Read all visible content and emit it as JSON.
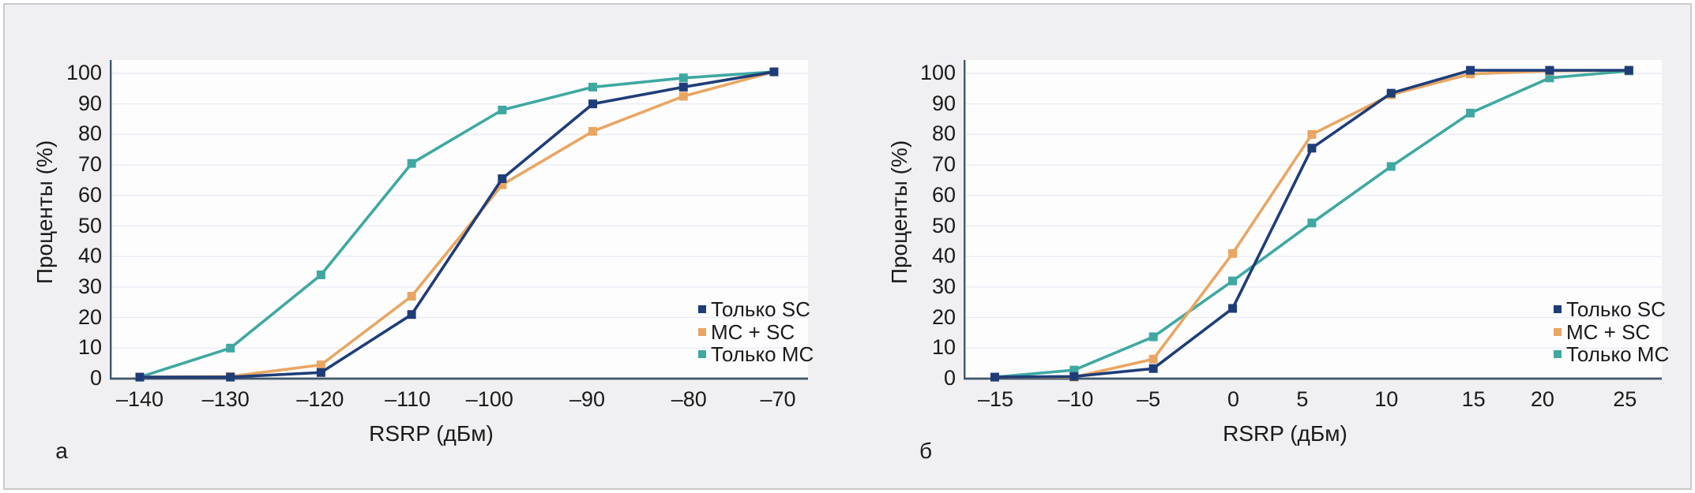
{
  "style": {
    "panel_bg": "#f0f0f2",
    "plot_bg": "#fdfdfe",
    "grid_color": "#e9ecf4",
    "axis_color": "#44586a",
    "text_color": "#1a1a1a",
    "series_colors": {
      "navy": "#1e3d78",
      "orange": "#e9a662",
      "teal": "#3fa8a1"
    }
  },
  "chart_data": [
    {
      "type": "line",
      "panel_label": "а",
      "xlabel": "RSRP (дБм)",
      "ylabel": "Проценты (%)",
      "x": [
        -140,
        -130,
        -120,
        -110,
        -100,
        -90,
        -80,
        -70
      ],
      "x_tick_labels": [
        "–140",
        "–130",
        "–120",
        "–110",
        "–100",
        "–90",
        "–80",
        "–70"
      ],
      "y_ticks": [
        0,
        10,
        20,
        30,
        40,
        50,
        60,
        70,
        80,
        90,
        100
      ],
      "ylim": [
        0,
        104.5
      ],
      "grid": true,
      "legend_position": "inside-bottom-right",
      "series": [
        {
          "name": "Только SC",
          "color": "#1e3d78",
          "marker": "square",
          "values": [
            0.5,
            0.5,
            2,
            21,
            65.5,
            90,
            95.5,
            100.5
          ]
        },
        {
          "name": "MC + SC",
          "color": "#e9a662",
          "marker": "square",
          "values": [
            0.5,
            0.7,
            4.5,
            27,
            63.5,
            81,
            92.5,
            100.5
          ]
        },
        {
          "name": "Только MC",
          "color": "#3fa8a1",
          "marker": "square",
          "values": [
            0.5,
            10,
            34,
            70.5,
            88,
            95.5,
            98.5,
            100.5
          ]
        }
      ]
    },
    {
      "type": "line",
      "panel_label": "б",
      "xlabel": "RSRP (дБм)",
      "ylabel": "Проценты (%)",
      "x": [
        -15,
        -10,
        -5,
        0,
        5,
        10,
        15,
        20,
        25
      ],
      "x_tick_labels": [
        "–15",
        "–10",
        "–5",
        "0",
        "5",
        "10",
        "15",
        "20",
        "25"
      ],
      "y_ticks": [
        0,
        10,
        20,
        30,
        40,
        50,
        60,
        70,
        80,
        90,
        100
      ],
      "ylim": [
        0,
        104.5
      ],
      "grid": true,
      "legend_position": "inside-bottom-right",
      "series": [
        {
          "name": "Только SC",
          "color": "#1e3d78",
          "marker": "square",
          "values": [
            0.5,
            0.7,
            3.3,
            23,
            75.5,
            93.5,
            101,
            101,
            101
          ]
        },
        {
          "name": "MC + SC",
          "color": "#e9a662",
          "marker": "square",
          "values": [
            0.5,
            0.5,
            6.4,
            41,
            80,
            93,
            99.8,
            100.8,
            101
          ]
        },
        {
          "name": "Только MC",
          "color": "#3fa8a1",
          "marker": "square",
          "values": [
            0.5,
            2.8,
            13.7,
            32,
            51,
            69.5,
            87,
            98.5,
            100.8
          ]
        }
      ]
    }
  ]
}
